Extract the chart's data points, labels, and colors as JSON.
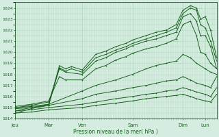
{
  "bg_color": "#d4ede0",
  "grid_color": "#aed4bc",
  "line_color": "#1a6020",
  "title": "Pression niveau de la mer( hPa )",
  "ylim": [
    1014,
    1024.5
  ],
  "yticks": [
    1014,
    1015,
    1016,
    1017,
    1018,
    1019,
    1020,
    1021,
    1022,
    1023,
    1024
  ],
  "day_labels": [
    "Jeu",
    "Mar",
    "Ven",
    "Sam",
    "Dim",
    "Lun"
  ],
  "day_positions": [
    0.0,
    0.167,
    0.333,
    0.583,
    0.833,
    0.944
  ],
  "xlim": [
    0.0,
    1.0
  ],
  "series": [
    [
      0.0,
      1014.5,
      0.08,
      1014.9,
      0.167,
      1015.2,
      0.22,
      1018.6,
      0.25,
      1018.3,
      0.28,
      1018.5,
      0.333,
      1018.2,
      0.4,
      1019.5,
      0.45,
      1019.8,
      0.5,
      1020.2,
      0.55,
      1020.5,
      0.583,
      1020.8,
      0.65,
      1021.2,
      0.7,
      1021.5,
      0.75,
      1021.8,
      0.8,
      1022.2,
      0.833,
      1023.5,
      0.87,
      1024.0,
      0.9,
      1023.8,
      0.92,
      1022.5,
      0.944,
      1022.2,
      0.97,
      1021.0,
      1.0,
      1019.2
    ],
    [
      0.0,
      1014.7,
      0.08,
      1015.0,
      0.167,
      1015.3,
      0.22,
      1018.8,
      0.25,
      1018.5,
      0.28,
      1018.7,
      0.333,
      1018.4,
      0.4,
      1019.8,
      0.45,
      1020.1,
      0.5,
      1020.5,
      0.55,
      1020.8,
      0.583,
      1021.1,
      0.65,
      1021.5,
      0.7,
      1021.8,
      0.75,
      1022.0,
      0.8,
      1022.5,
      0.833,
      1023.8,
      0.87,
      1024.2,
      0.9,
      1024.0,
      0.92,
      1023.0,
      0.944,
      1023.2,
      0.97,
      1022.0,
      1.0,
      1019.5
    ],
    [
      0.0,
      1015.0,
      0.08,
      1015.2,
      0.167,
      1015.5,
      0.22,
      1018.5,
      0.25,
      1018.2,
      0.333,
      1018.0,
      0.4,
      1019.2,
      0.45,
      1019.5,
      0.5,
      1020.0,
      0.55,
      1020.3,
      0.583,
      1020.6,
      0.65,
      1021.0,
      0.7,
      1021.2,
      0.75,
      1021.5,
      0.8,
      1021.8,
      0.833,
      1023.2,
      0.87,
      1023.5,
      0.9,
      1022.8,
      0.92,
      1021.5,
      0.944,
      1021.5,
      0.97,
      1020.5,
      1.0,
      1018.5
    ],
    [
      0.0,
      1015.1,
      0.08,
      1015.3,
      0.167,
      1015.6,
      0.22,
      1017.8,
      0.25,
      1017.5,
      0.333,
      1017.5,
      0.4,
      1018.5,
      0.45,
      1018.8,
      0.5,
      1019.3,
      0.55,
      1019.6,
      0.583,
      1019.9,
      0.65,
      1020.3,
      0.7,
      1020.5,
      0.75,
      1020.8,
      0.8,
      1021.2,
      0.833,
      1022.5,
      0.87,
      1022.8,
      0.9,
      1021.5,
      0.92,
      1020.0,
      0.944,
      1019.8,
      0.97,
      1019.0,
      1.0,
      1018.5
    ],
    [
      0.0,
      1015.0,
      0.08,
      1015.1,
      0.167,
      1015.3,
      0.333,
      1016.5,
      0.4,
      1017.0,
      0.5,
      1017.5,
      0.583,
      1018.0,
      0.65,
      1018.5,
      0.7,
      1018.8,
      0.75,
      1019.0,
      0.8,
      1019.2,
      0.833,
      1019.8,
      0.87,
      1019.5,
      0.9,
      1019.0,
      0.944,
      1018.5,
      0.97,
      1018.2,
      1.0,
      1018.0
    ],
    [
      0.0,
      1014.9,
      0.08,
      1015.0,
      0.167,
      1015.2,
      0.333,
      1015.8,
      0.4,
      1016.2,
      0.5,
      1016.5,
      0.583,
      1016.8,
      0.65,
      1017.0,
      0.7,
      1017.2,
      0.75,
      1017.4,
      0.8,
      1017.5,
      0.833,
      1017.8,
      0.87,
      1017.5,
      0.9,
      1017.2,
      0.944,
      1017.0,
      0.97,
      1016.8,
      1.0,
      1017.8
    ],
    [
      0.0,
      1014.7,
      0.08,
      1014.8,
      0.167,
      1015.0,
      0.333,
      1015.3,
      0.4,
      1015.5,
      0.5,
      1015.8,
      0.583,
      1016.0,
      0.65,
      1016.2,
      0.7,
      1016.3,
      0.75,
      1016.5,
      0.8,
      1016.6,
      0.833,
      1016.8,
      0.87,
      1016.6,
      0.9,
      1016.4,
      0.944,
      1016.2,
      0.97,
      1016.0,
      1.0,
      1016.8
    ],
    [
      0.0,
      1014.5,
      0.08,
      1014.6,
      0.167,
      1014.8,
      0.333,
      1015.0,
      0.4,
      1015.2,
      0.5,
      1015.4,
      0.583,
      1015.6,
      0.65,
      1015.8,
      0.7,
      1015.9,
      0.75,
      1016.0,
      0.8,
      1016.1,
      0.833,
      1016.2,
      0.87,
      1016.0,
      0.9,
      1015.8,
      0.944,
      1015.6,
      0.97,
      1015.5,
      1.0,
      1016.2
    ]
  ]
}
